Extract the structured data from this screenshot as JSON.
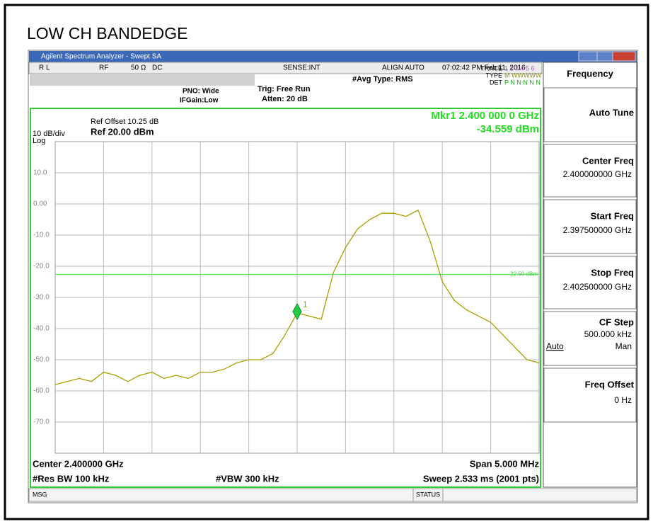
{
  "title": "LOW CH BANDEDGE",
  "window_title": "Agilent Spectrum Analyzer - Swept SA",
  "status_bar": {
    "rl": "R L",
    "rf": "RF",
    "impedance": "50 Ω",
    "coupling": "DC",
    "sense": "SENSE:INT",
    "align": "ALIGN AUTO",
    "datetime": "07:02:42 PM Feb 11, 2016"
  },
  "settings": {
    "avg_type": "#Avg Type: RMS",
    "pno": "PNO: Wide",
    "ifgain": "IFGain:Low",
    "trig": "Trig: Free Run",
    "atten": "Atten: 20 dB"
  },
  "trace_info": {
    "trace_label": "TRACE",
    "trace_nums": "1 2 3 4 5 6",
    "type_label": "TYPE",
    "type_val": "M WWWWW",
    "det_label": "DET",
    "det_val": "P N N N N N"
  },
  "graph": {
    "ref_offset": "Ref Offset 10.25 dB",
    "scale": "10 dB/div",
    "log": "Log",
    "ref": "Ref 20.00 dBm",
    "marker_freq": "Mkr1 2.400 000 0 GHz",
    "marker_amp": "-34.559 dBm",
    "marker_num": "1",
    "display_line_label": "-22.59 dBm",
    "center": "Center 2.400000 GHz",
    "res_bw": "#Res BW 100 kHz",
    "vbw": "#VBW 300 kHz",
    "span": "Span 5.000 MHz",
    "sweep": "Sweep  2.533 ms (2001 pts)"
  },
  "chart_data": {
    "type": "line",
    "xlim": [
      2.3975,
      2.4025
    ],
    "ylim": [
      -80,
      20
    ],
    "yticks": [
      {
        "value": 10,
        "label": "10.0"
      },
      {
        "value": 0,
        "label": "0.00"
      },
      {
        "value": -10,
        "label": "-10.0"
      },
      {
        "value": -20,
        "label": "-20.0"
      },
      {
        "value": -30,
        "label": "-30.0"
      },
      {
        "value": -40,
        "label": "-40.0"
      },
      {
        "value": -50,
        "label": "-50.0"
      },
      {
        "value": -60,
        "label": "-60.0"
      },
      {
        "value": -70,
        "label": "-70.0"
      }
    ],
    "display_line": -22.59,
    "marker_x": 2.4,
    "marker_y": -34.559,
    "color": "#a8a000",
    "values": [
      -58,
      -57,
      -56,
      -57,
      -54,
      -55,
      -57,
      -55,
      -54,
      -56,
      -55,
      -56,
      -54,
      -54,
      -53,
      -51,
      -50,
      -50,
      -48,
      -42,
      -35,
      -36,
      -37,
      -22,
      -14,
      -8,
      -5,
      -3,
      -3,
      -4,
      -2,
      -12,
      -25,
      -31,
      -34,
      -36,
      -38,
      -42,
      -46,
      -50,
      -51
    ]
  },
  "softkeys": {
    "header": "Frequency",
    "auto_tune": "Auto Tune",
    "center_freq": "Center Freq",
    "center_val": "2.400000000 GHz",
    "start_freq": "Start Freq",
    "start_val": "2.397500000 GHz",
    "stop_freq": "Stop Freq",
    "stop_val": "2.402500000 GHz",
    "cf_step": "CF Step",
    "cf_val": "500.000 kHz",
    "auto": "Auto",
    "man": "Man",
    "freq_offset": "Freq Offset",
    "offset_val": "0 Hz"
  },
  "footer": {
    "msg": "MSG",
    "status": "STATUS"
  }
}
